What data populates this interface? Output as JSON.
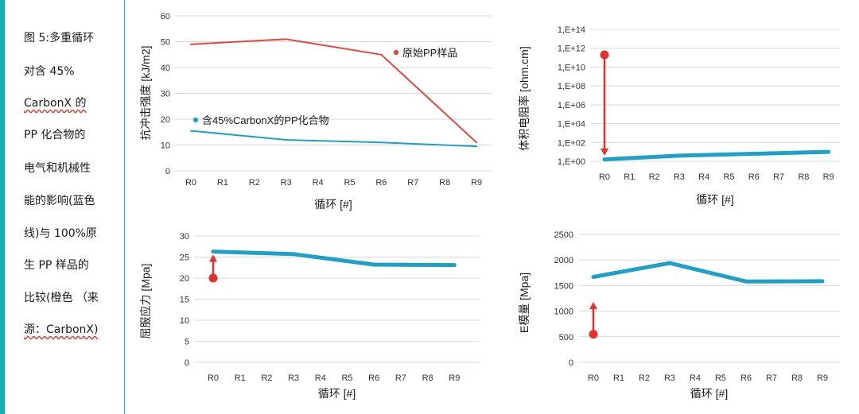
{
  "caption": {
    "lines": [
      "图 5:多重循环",
      "对含 45%",
      "CarbonX 的",
      "PP 化合物的",
      "电气和机械性",
      "能的影响(蓝色",
      "线)与 100%原",
      "生 PP 样品的",
      "比较(橙色 （来",
      "源：CarbonX)"
    ]
  },
  "colors": {
    "blue": "#1fa0c8",
    "orange": "#e8453c",
    "arrow": "#e8302a",
    "teal_panel": "#16b1b4"
  },
  "chart_data": [
    {
      "type": "line",
      "id": "impact-strength",
      "ylabel": "抗冲击强度 [kJ/m2]",
      "xlabel": "循环 [#]",
      "categories": [
        "R0",
        "R1",
        "R2",
        "R3",
        "R4",
        "R5",
        "R6",
        "R7",
        "R8",
        "R9"
      ],
      "ylim": [
        0,
        60
      ],
      "yticks": [
        "0",
        "10",
        "20",
        "30",
        "40",
        "50",
        "60"
      ],
      "series": [
        {
          "name": "原始PP样品",
          "color": "orange",
          "x": [
            0,
            3,
            6,
            9
          ],
          "values": [
            49,
            51,
            45,
            11
          ]
        },
        {
          "name": "含45%CarbonX的PP化合物",
          "color": "blue",
          "x": [
            0,
            3,
            6,
            9
          ],
          "values": [
            15.5,
            12,
            11,
            9.5
          ]
        }
      ]
    },
    {
      "type": "line",
      "id": "volume-resistivity",
      "ylabel": "体积电阻率 [ohm.cm]",
      "xlabel": "循环 [#]",
      "categories": [
        "R0",
        "R1",
        "R2",
        "R3",
        "R4",
        "R5",
        "R6",
        "R7",
        "R8",
        "R9"
      ],
      "scale": "log10",
      "ylim_log10": [
        0,
        14
      ],
      "yticks": [
        "1,E+00",
        "1,E+02",
        "1,E+04",
        "1,E+06",
        "1,E+08",
        "1,E+10",
        "1,E+12",
        "1,E+14"
      ],
      "series": [
        {
          "name": "含45%CarbonX的PP化合物",
          "color": "blue",
          "x": [
            0,
            3,
            9
          ],
          "log10_values": [
            0.2,
            0.6,
            1.0
          ]
        }
      ],
      "arrow": {
        "x": 0,
        "from_log10": 11.3,
        "to_log10": 0.6
      }
    },
    {
      "type": "line",
      "id": "yield-stress",
      "ylabel": "屈服应力 [Mpa]",
      "xlabel": "循环 [#]",
      "categories": [
        "R0",
        "R1",
        "R2",
        "R3",
        "R4",
        "R5",
        "R6",
        "R7",
        "R8",
        "R9"
      ],
      "ylim": [
        0,
        30
      ],
      "yticks": [
        "0",
        "5",
        "10",
        "15",
        "20",
        "25",
        "30"
      ],
      "series": [
        {
          "name": "含45%CarbonX的PP化合物",
          "color": "blue",
          "x": [
            0,
            3,
            6,
            9
          ],
          "values": [
            26.3,
            25.7,
            23.2,
            23.1
          ]
        }
      ],
      "arrow": {
        "x": 0,
        "from": 20,
        "to": 25.6
      }
    },
    {
      "type": "line",
      "id": "e-modulus",
      "ylabel": "E模量 [Mpa]",
      "xlabel": "循环 [#]",
      "categories": [
        "R0",
        "R1",
        "R2",
        "R3",
        "R4",
        "R5",
        "R6",
        "R7",
        "R8",
        "R9"
      ],
      "ylim": [
        0,
        2500
      ],
      "yticks": [
        "0",
        "500",
        "1000",
        "1500",
        "2000",
        "2500"
      ],
      "series": [
        {
          "name": "含45%CarbonX的PP化合物",
          "color": "blue",
          "x": [
            0,
            3,
            6,
            9
          ],
          "values": [
            1670,
            1940,
            1580,
            1585
          ]
        }
      ],
      "arrow": {
        "x": 0,
        "from": 550,
        "to": 1180
      }
    }
  ]
}
